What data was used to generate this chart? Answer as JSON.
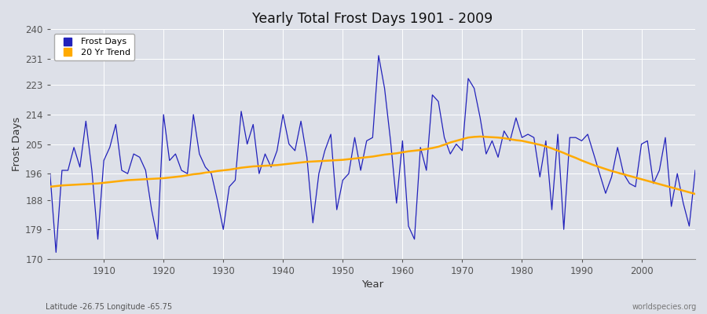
{
  "title": "Yearly Total Frost Days 1901 - 2009",
  "xlabel": "Year",
  "ylabel": "Frost Days",
  "subtitle": "Latitude -26.75 Longitude -65.75",
  "watermark": "worldspecies.org",
  "ylim": [
    170,
    240
  ],
  "yticks": [
    170,
    179,
    188,
    196,
    205,
    214,
    223,
    231,
    240
  ],
  "xticks": [
    1910,
    1920,
    1930,
    1940,
    1950,
    1960,
    1970,
    1980,
    1990,
    2000
  ],
  "xlim": [
    1901,
    2009
  ],
  "line_color": "#2222bb",
  "trend_color": "#ffaa00",
  "bg_color": "#dde0e8",
  "grid_color": "#ffffff",
  "years": [
    1901,
    1902,
    1903,
    1904,
    1905,
    1906,
    1907,
    1908,
    1909,
    1910,
    1911,
    1912,
    1913,
    1914,
    1915,
    1916,
    1917,
    1918,
    1919,
    1920,
    1921,
    1922,
    1923,
    1924,
    1925,
    1926,
    1927,
    1928,
    1929,
    1930,
    1931,
    1932,
    1933,
    1934,
    1935,
    1936,
    1937,
    1938,
    1939,
    1940,
    1941,
    1942,
    1943,
    1944,
    1945,
    1946,
    1947,
    1948,
    1949,
    1950,
    1951,
    1952,
    1953,
    1954,
    1955,
    1956,
    1957,
    1958,
    1959,
    1960,
    1961,
    1962,
    1963,
    1964,
    1965,
    1966,
    1967,
    1968,
    1969,
    1970,
    1971,
    1972,
    1973,
    1974,
    1975,
    1976,
    1977,
    1978,
    1979,
    1980,
    1981,
    1982,
    1983,
    1984,
    1985,
    1986,
    1987,
    1988,
    1989,
    1990,
    1991,
    1992,
    1993,
    1994,
    1995,
    1996,
    1997,
    1998,
    1999,
    2000,
    2001,
    2002,
    2003,
    2004,
    2005,
    2006,
    2007,
    2008,
    2009
  ],
  "frost_days": [
    196,
    172,
    197,
    197,
    204,
    198,
    212,
    197,
    176,
    200,
    204,
    211,
    197,
    196,
    202,
    201,
    197,
    185,
    176,
    214,
    200,
    202,
    197,
    196,
    214,
    202,
    198,
    196,
    188,
    179,
    192,
    194,
    215,
    205,
    211,
    196,
    202,
    198,
    203,
    214,
    205,
    203,
    212,
    201,
    181,
    196,
    203,
    208,
    185,
    194,
    196,
    207,
    197,
    206,
    207,
    232,
    222,
    206,
    187,
    206,
    180,
    176,
    204,
    197,
    220,
    218,
    207,
    202,
    205,
    203,
    225,
    222,
    213,
    202,
    206,
    201,
    209,
    206,
    213,
    207,
    208,
    207,
    195,
    206,
    185,
    208,
    179,
    207,
    207,
    206,
    208,
    202,
    196,
    190,
    195,
    204,
    196,
    193,
    192,
    205,
    206,
    193,
    197,
    207,
    186,
    196,
    187,
    180,
    197
  ],
  "trend": [
    192.0,
    192.2,
    192.4,
    192.5,
    192.6,
    192.7,
    192.8,
    192.9,
    193.0,
    193.2,
    193.4,
    193.6,
    193.8,
    194.0,
    194.1,
    194.2,
    194.3,
    194.4,
    194.5,
    194.6,
    194.8,
    195.0,
    195.2,
    195.5,
    195.8,
    196.0,
    196.3,
    196.5,
    196.8,
    197.0,
    197.2,
    197.5,
    197.8,
    198.0,
    198.2,
    198.3,
    198.4,
    198.5,
    198.6,
    198.8,
    199.0,
    199.2,
    199.4,
    199.6,
    199.7,
    199.8,
    199.9,
    200.0,
    200.1,
    200.2,
    200.4,
    200.6,
    200.8,
    201.0,
    201.2,
    201.5,
    201.8,
    202.0,
    202.2,
    202.5,
    202.8,
    203.0,
    203.2,
    203.5,
    203.8,
    204.2,
    204.8,
    205.5,
    206.0,
    206.5,
    207.0,
    207.2,
    207.3,
    207.2,
    207.1,
    207.0,
    206.8,
    206.5,
    206.2,
    206.0,
    205.6,
    205.2,
    204.8,
    204.3,
    203.7,
    203.0,
    202.3,
    201.5,
    200.8,
    200.0,
    199.3,
    198.6,
    198.0,
    197.4,
    196.8,
    196.3,
    195.8,
    195.3,
    194.8,
    194.3,
    193.8,
    193.3,
    192.8,
    192.3,
    191.8,
    191.3,
    190.8,
    190.3,
    189.8
  ]
}
